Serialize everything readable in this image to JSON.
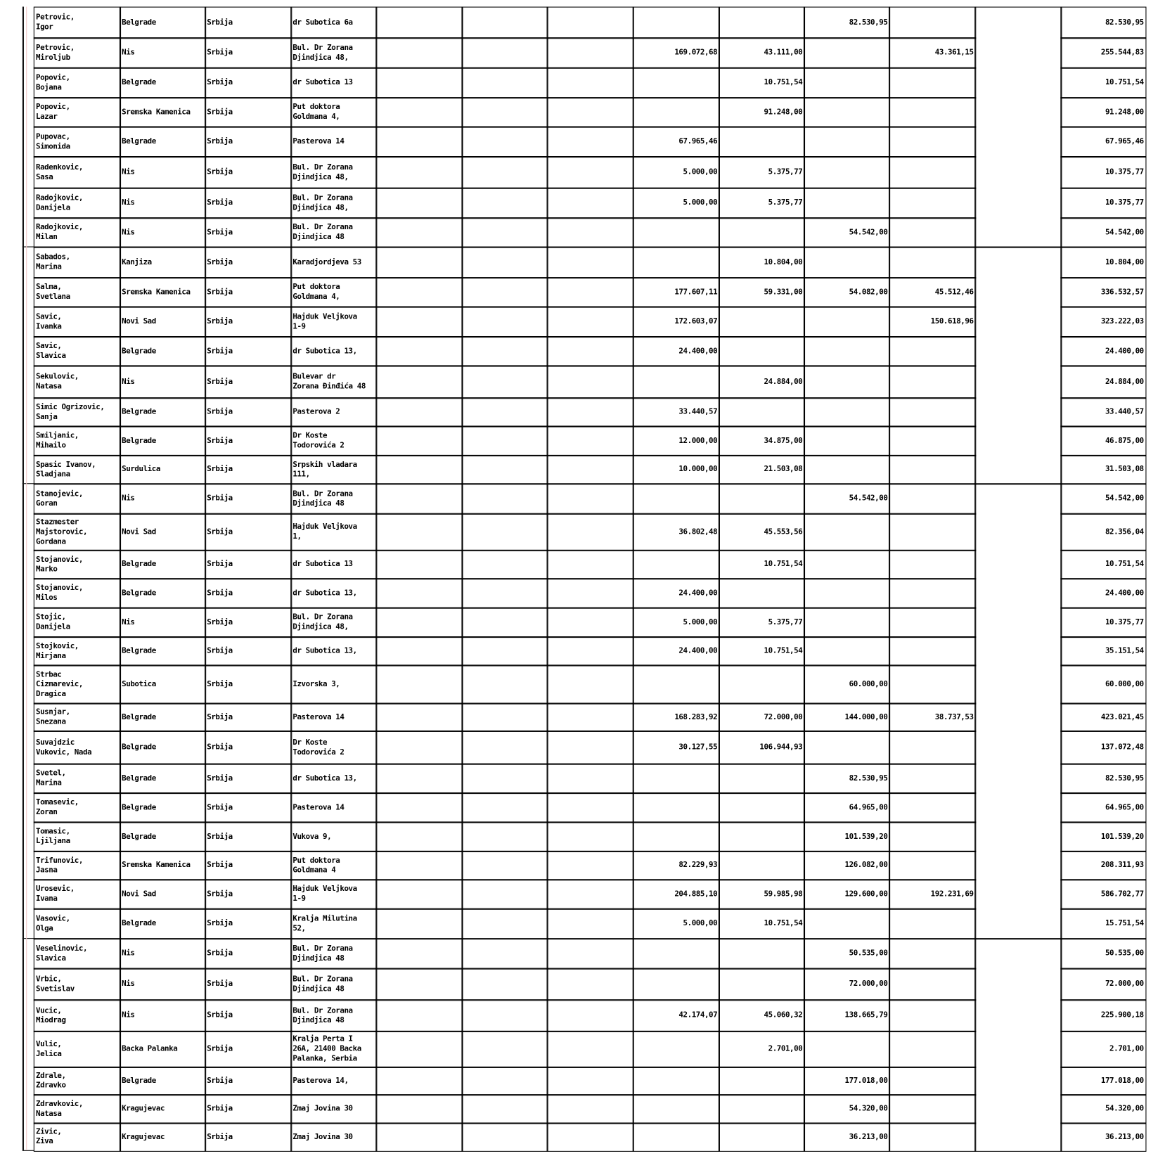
{
  "table": {
    "rows": [
      [
        "Petrovic,\nIgor",
        "Belgrade",
        "Srbija",
        "dr Subotica 6a",
        "",
        "",
        "82.530,95",
        "",
        "82.530,95"
      ],
      [
        "Petrovic,\nMiroljub",
        "Nis",
        "Srbija",
        "Bul. Dr Zorana\nDjindjica 48,",
        "169.072,68",
        "43.111,00",
        "",
        "43.361,15",
        "255.544,83"
      ],
      [
        "Popovic,\nBojana",
        "Belgrade",
        "Srbija",
        "dr Subotica 13",
        "",
        "10.751,54",
        "",
        "",
        "10.751,54"
      ],
      [
        "Popovic,\nLazar",
        "Sremska Kamenica",
        "Srbija",
        "Put doktora\nGoldmana 4,",
        "",
        "91.248,00",
        "",
        "",
        "91.248,00"
      ],
      [
        "Pupovac,\nSimonida",
        "Belgrade",
        "Srbija",
        "Pasterova 14",
        "67.965,46",
        "",
        "",
        "",
        "67.965,46"
      ],
      [
        "Radenkovic,\nSasa",
        "Nis",
        "Srbija",
        "Bul. Dr Zorana\nDjindjica 48,",
        "5.000,00",
        "5.375,77",
        "",
        "",
        "10.375,77"
      ],
      [
        "Radojkovic,\nDanijela",
        "Nis",
        "Srbija",
        "Bul. Dr Zorana\nDjindjica 48,",
        "5.000,00",
        "5.375,77",
        "",
        "",
        "10.375,77"
      ],
      [
        "Radojkovic,\nMilan",
        "Nis",
        "Srbija",
        "Bul. Dr Zorana\nDjindjica 48",
        "",
        "",
        "54.542,00",
        "",
        "54.542,00"
      ],
      [
        "Sabados,\nMarina",
        "Kanjiza",
        "Srbija",
        "Karadjordjeva 53",
        "",
        "10.804,00",
        "",
        "",
        "10.804,00"
      ],
      [
        "Salma,\nSvetlana",
        "Sremska Kamenica",
        "Srbija",
        "Put doktora\nGoldmana 4,",
        "177.607,11",
        "59.331,00",
        "54.082,00",
        "45.512,46",
        "336.532,57"
      ],
      [
        "Savic,\nIvanka",
        "Novi Sad",
        "Srbija",
        "Hajduk Veljkova\n1-9",
        "172.603,07",
        "",
        "",
        "150.618,96",
        "323.222,03"
      ],
      [
        "Savic,\nSlavica",
        "Belgrade",
        "Srbija",
        "dr Subotica 13,",
        "24.400,00",
        "",
        "",
        "",
        "24.400,00"
      ],
      [
        "Sekulovic,\nNatasa",
        "Nis",
        "Srbija",
        "Bulevar dr\nZorana Đinđića 48",
        "",
        "24.884,00",
        "",
        "",
        "24.884,00"
      ],
      [
        "Simic Ogrizovic,\nSanja",
        "Belgrade",
        "Srbija",
        "Pasterova 2",
        "33.440,57",
        "",
        "",
        "",
        "33.440,57"
      ],
      [
        "Smiljanic,\nMihailo",
        "Belgrade",
        "Srbija",
        "Dr Koste\nTodorovića 2",
        "12.000,00",
        "34.875,00",
        "",
        "",
        "46.875,00"
      ],
      [
        "Spasic Ivanov,\nSladjana",
        "Surdulica",
        "Srbija",
        "Srpskih vladara\n111,",
        "10.000,00",
        "21.503,08",
        "",
        "",
        "31.503,08"
      ],
      [
        "Stanojevic,\nGoran",
        "Nis",
        "Srbija",
        "Bul. Dr Zorana\nDjindjica 48",
        "",
        "",
        "54.542,00",
        "",
        "54.542,00"
      ],
      [
        "Stazmester\nMajstorovic,\nGordana",
        "Novi Sad",
        "Srbija",
        "Hajduk Veljkova\n1,",
        "36.802,48",
        "45.553,56",
        "",
        "",
        "82.356,04"
      ],
      [
        "Stojanovic,\nMarko",
        "Belgrade",
        "Srbija",
        "dr Subotica 13",
        "",
        "10.751,54",
        "",
        "",
        "10.751,54"
      ],
      [
        "Stojanovic,\nMilos",
        "Belgrade",
        "Srbija",
        "dr Subotica 13,",
        "24.400,00",
        "",
        "",
        "",
        "24.400,00"
      ],
      [
        "Stojic,\nDanijela",
        "Nis",
        "Srbija",
        "Bul. Dr Zorana\nDjindjica 48,",
        "5.000,00",
        "5.375,77",
        "",
        "",
        "10.375,77"
      ],
      [
        "Stojkovic,\nMirjana",
        "Belgrade",
        "Srbija",
        "dr Subotica 13,",
        "24.400,00",
        "10.751,54",
        "",
        "",
        "35.151,54"
      ],
      [
        "Strbac\nCizmarevic,\nDragica",
        "Subotica",
        "Srbija",
        "Izvorska 3,",
        "",
        "",
        "60.000,00",
        "",
        "60.000,00"
      ],
      [
        "Susnjar,\nSnezana",
        "Belgrade",
        "Srbija",
        "Pasterova 14",
        "168.283,92",
        "72.000,00",
        "144.000,00",
        "38.737,53",
        "423.021,45"
      ],
      [
        "Suvajdzic\nVukovic, Nada",
        "Belgrade",
        "Srbija",
        "Dr Koste\nTodorovića 2",
        "30.127,55",
        "106.944,93",
        "",
        "",
        "137.072,48"
      ],
      [
        "Svetel,\nMarina",
        "Belgrade",
        "Srbija",
        "dr Subotica 13,",
        "",
        "",
        "82.530,95",
        "",
        "82.530,95"
      ],
      [
        "Tomasevic,\nZoran",
        "Belgrade",
        "Srbija",
        "Pasterova 14",
        "",
        "",
        "64.965,00",
        "",
        "64.965,00"
      ],
      [
        "Tomasic,\nLjiljana",
        "Belgrade",
        "Srbija",
        "Vukova 9,",
        "",
        "",
        "101.539,20",
        "",
        "101.539,20"
      ],
      [
        "Trifunovic,\nJasna",
        "Sremska Kamenica",
        "Srbija",
        "Put doktora\nGoldmana 4",
        "82.229,93",
        "",
        "126.082,00",
        "",
        "208.311,93"
      ],
      [
        "Urosevic,\nIvana",
        "Novi Sad",
        "Srbija",
        "Hajduk Veljkova\n1-9",
        "204.885,10",
        "59.985,98",
        "129.600,00",
        "192.231,69",
        "586.702,77"
      ],
      [
        "Vasovic,\nOlga",
        "Belgrade",
        "Srbija",
        "Kralja Milutina\n52,",
        "5.000,00",
        "10.751,54",
        "",
        "",
        "15.751,54"
      ],
      [
        "Veselinovic,\nSlavica",
        "Nis",
        "Srbija",
        "Bul. Dr Zorana\nDjindjica 48",
        "",
        "",
        "50.535,00",
        "",
        "50.535,00"
      ],
      [
        "Vrbic,\nSvetislav",
        "Nis",
        "Srbija",
        "Bul. Dr Zorana\nDjindjica 48",
        "",
        "",
        "72.000,00",
        "",
        "72.000,00"
      ],
      [
        "Vucic,\nMiodrag",
        "Nis",
        "Srbija",
        "Bul. Dr Zorana\nDjindjica 48",
        "42.174,07",
        "45.060,32",
        "138.665,79",
        "",
        "225.900,18"
      ],
      [
        "Vulic,\nJelica",
        "Backa Palanka",
        "Srbija",
        "Kralja Perta I\n26A, 21400 Backa\nPalanka, Serbia",
        "",
        "2.701,00",
        "",
        "",
        "2.701,00"
      ],
      [
        "Zdrale,\nZdravko",
        "Belgrade",
        "Srbija",
        "Pasterova 14,",
        "",
        "",
        "177.018,00",
        "",
        "177.018,00"
      ],
      [
        "Zdravkovic,\nNatasa",
        "Kragujevac",
        "Srbija",
        "Zmaj Jovina 30",
        "",
        "",
        "54.320,00",
        "",
        "54.320,00"
      ],
      [
        "Zivic,\nZiva",
        "Kragujevac",
        "Srbija",
        "Zmaj Jovina 30",
        "",
        "",
        "36.213,00",
        "",
        "36.213,00"
      ]
    ]
  }
}
